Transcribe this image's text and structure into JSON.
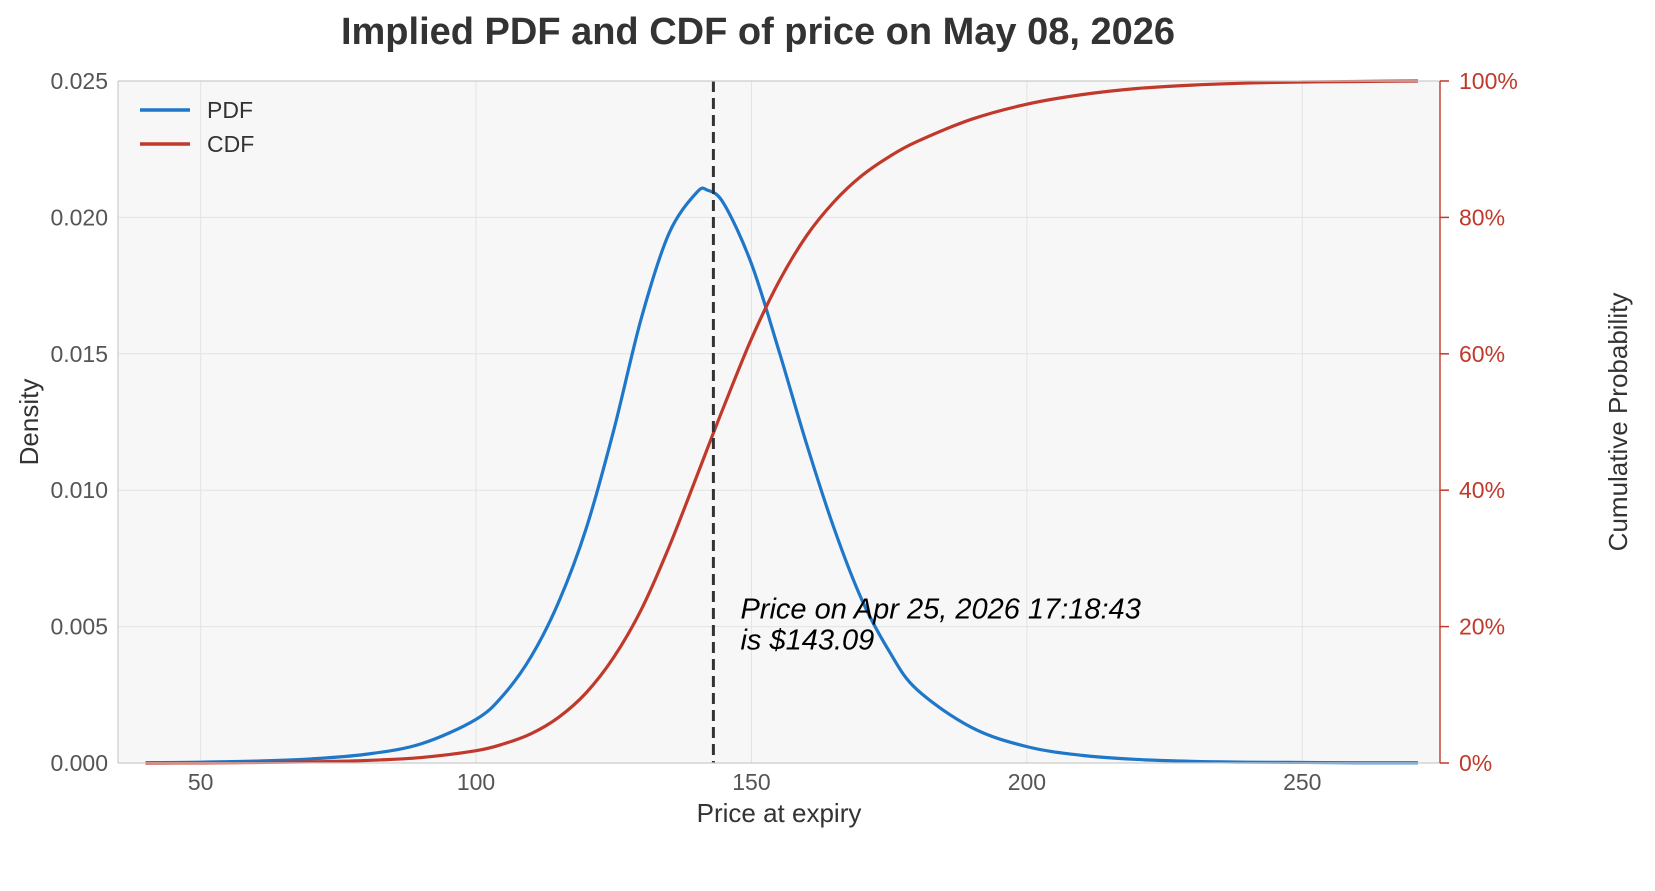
{
  "chart_data": {
    "type": "line",
    "title": "Implied PDF and CDF of price on May 08, 2026",
    "xlabel": "Price at expiry",
    "ylabel_left": "Density",
    "ylabel_right": "Cumulative Probability",
    "xlim": [
      35,
      275
    ],
    "ylim_left": [
      0,
      0.025
    ],
    "ylim_right": [
      0,
      1
    ],
    "x_ticks": [
      "50",
      "100",
      "150",
      "200",
      "250"
    ],
    "x_tick_values": [
      50,
      100,
      150,
      200,
      250
    ],
    "y_left_ticks": [
      "0.000",
      "0.005",
      "0.010",
      "0.015",
      "0.020",
      "0.025"
    ],
    "y_left_tick_values": [
      0,
      0.005,
      0.01,
      0.015,
      0.02,
      0.025
    ],
    "y_right_ticks": [
      "0%",
      "20%",
      "40%",
      "60%",
      "80%",
      "100%"
    ],
    "y_right_tick_values": [
      0,
      0.2,
      0.4,
      0.6,
      0.8,
      1.0
    ],
    "grid": true,
    "legend_position": "top-left",
    "x": [
      40,
      50,
      60,
      70,
      80,
      90,
      100,
      105,
      110,
      115,
      120,
      125,
      130,
      135,
      140,
      142,
      145,
      150,
      155,
      160,
      165,
      170,
      175,
      180,
      190,
      200,
      210,
      220,
      230,
      240,
      250,
      260,
      271
    ],
    "series": [
      {
        "name": "PDF",
        "axis": "left",
        "color": "#1f77c9",
        "values": [
          1e-05,
          3e-05,
          7e-05,
          0.00015,
          0.00032,
          0.0007,
          0.0016,
          0.0025,
          0.0039,
          0.0059,
          0.0086,
          0.0122,
          0.0163,
          0.0194,
          0.0209,
          0.021,
          0.0205,
          0.0183,
          0.0151,
          0.0117,
          0.0086,
          0.006,
          0.0041,
          0.0027,
          0.0013,
          0.0006,
          0.00028,
          0.00013,
          6e-05,
          3e-05,
          2e-05,
          1e-05,
          1e-05
        ]
      },
      {
        "name": "CDF",
        "axis": "right",
        "color": "#c0392b",
        "values": [
          0.0,
          0.0002,
          0.0007,
          0.0016,
          0.0037,
          0.008,
          0.018,
          0.028,
          0.043,
          0.067,
          0.103,
          0.155,
          0.225,
          0.316,
          0.419,
          0.461,
          0.523,
          0.622,
          0.706,
          0.773,
          0.823,
          0.861,
          0.889,
          0.911,
          0.944,
          0.966,
          0.98,
          0.989,
          0.994,
          0.997,
          0.9985,
          0.9993,
          1.0
        ]
      }
    ],
    "reference_line": {
      "x": 143.09,
      "style": "dashed",
      "color": "#333333"
    },
    "annotation": {
      "line1": "Price on Apr 25, 2026 17:18:43",
      "line2": "is $143.09",
      "x": 148,
      "y_left": 0.0053
    },
    "colors": {
      "pdf": "#1f77c9",
      "cdf": "#c0392b",
      "plot_background": "#f7f7f8",
      "grid": "#e3e3e3",
      "frame": "#cccccc"
    }
  }
}
